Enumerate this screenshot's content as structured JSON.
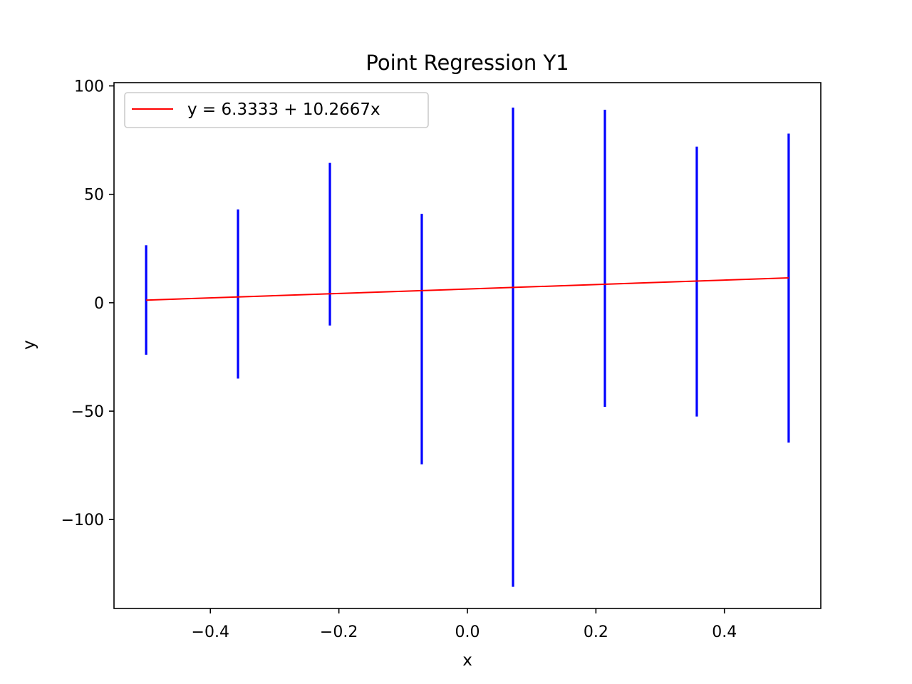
{
  "chart_data": {
    "type": "errorbar",
    "title": "Point Regression Y1",
    "xlabel": "x",
    "ylabel": "y",
    "xlim": [
      -0.55,
      0.55
    ],
    "ylim": [
      -141,
      101.5
    ],
    "xticks": [
      -0.4,
      -0.2,
      0.0,
      0.2,
      0.4
    ],
    "xtick_labels": [
      "−0.4",
      "−0.2",
      "0.0",
      "0.2",
      "0.4"
    ],
    "yticks": [
      100,
      50,
      0,
      -50,
      -100
    ],
    "ytick_labels": [
      "100",
      "50",
      "0",
      "−50",
      "−100"
    ],
    "grid": false,
    "legend_position": "upper left",
    "regression": {
      "label": "y = 6.3333 + 10.2667x",
      "intercept": 6.3333,
      "slope": 10.2667,
      "x_range": [
        -0.5,
        0.5
      ],
      "color": "#ff0000"
    },
    "error_bars": {
      "color": "#0000ff",
      "x": [
        -0.5,
        -0.357,
        -0.214,
        -0.071,
        0.071,
        0.214,
        0.357,
        0.5
      ],
      "low": [
        -24,
        -35,
        -10.5,
        -74.5,
        -131,
        -48,
        -52.5,
        -64.5
      ],
      "high": [
        26.5,
        43,
        64.5,
        41,
        90,
        89,
        72,
        78
      ]
    }
  }
}
